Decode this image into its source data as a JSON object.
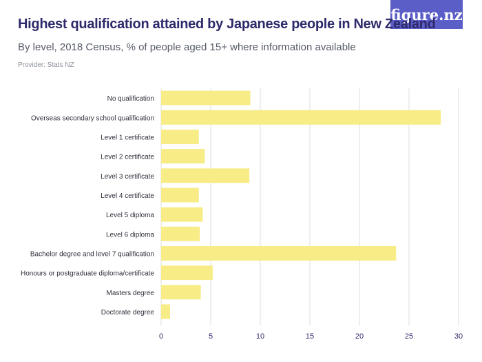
{
  "header": {
    "title": "Highest qualification attained by Japanese people in New Zealand",
    "subtitle": "By level, 2018 Census, % of people aged 15+ where information available",
    "provider": "Provider: Stats NZ",
    "logo": "figure.nz"
  },
  "colors": {
    "bar": "#f7ec86",
    "grid": "#dcdcdc",
    "axis": "#2e2a6b",
    "logo_bg": "#5b5ec7"
  },
  "chart_data": {
    "type": "bar",
    "orientation": "horizontal",
    "categories": [
      "No qualification",
      "Overseas secondary school qualification",
      "Level 1 certificate",
      "Level 2 certificate",
      "Level 3 certificate",
      "Level 4 certificate",
      "Level 5 diploma",
      "Level 6 diploma",
      "Bachelor degree and level 7 qualification",
      "Honours or postgraduate diploma/certificate",
      "Masters degree",
      "Doctorate degree"
    ],
    "values": [
      9.0,
      28.2,
      3.8,
      4.4,
      8.9,
      3.8,
      4.2,
      3.9,
      23.7,
      5.2,
      4.0,
      0.9
    ],
    "xlim": [
      0,
      30
    ],
    "xticks": [
      "0",
      "5",
      "10",
      "15",
      "20",
      "25",
      "30"
    ],
    "grid": true
  }
}
